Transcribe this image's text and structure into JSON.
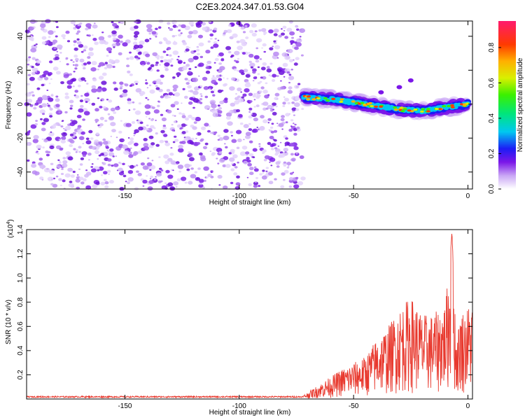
{
  "title": "C2E3.2024.347.01.53.G04",
  "chart_data": [
    {
      "type": "heatmap",
      "xlabel": "Height of straight line (km)",
      "ylabel": "Frequency (Hz)",
      "xlim": [
        -193,
        2
      ],
      "ylim": [
        -50,
        49
      ],
      "xticks": [
        -150,
        -100,
        -50,
        0
      ],
      "yticks": [
        -40,
        -20,
        0,
        20,
        40
      ],
      "noise_region_x": [
        -193,
        -72
      ],
      "signal_track": {
        "x": [
          -72,
          -60,
          -50,
          -40,
          -30,
          -20,
          -10,
          -5,
          0
        ],
        "freq": [
          4,
          3,
          1,
          -1,
          -3,
          -4,
          -2,
          -1,
          0
        ]
      },
      "colorbar": {
        "label": "Normalized spectral amplitude",
        "range": [
          0,
          0.95
        ],
        "ticks": [
          0.0,
          0.2,
          0.4,
          0.6,
          0.8
        ]
      }
    },
    {
      "type": "line",
      "xlabel": "Height of straight line (km)",
      "ylabel": "SNR (10 * v/v)",
      "yscale_label": "(x10",
      "yscale_exp": "4",
      "xlim": [
        -193,
        2
      ],
      "ylim": [
        0,
        1.4
      ],
      "xticks": [
        -150,
        -100,
        -50,
        0
      ],
      "yticks": [
        0.2,
        0.4,
        0.6,
        0.8,
        1.0,
        1.2,
        1.4
      ],
      "color": "#e8392e",
      "envelope": {
        "x": [
          -193,
          -150,
          -100,
          -72,
          -65,
          -55,
          -45,
          -40,
          -35,
          -30,
          -25,
          -20,
          -15,
          -10,
          -8,
          -7,
          -5,
          -3,
          -1,
          0,
          2
        ],
        "y": [
          0.02,
          0.02,
          0.02,
          0.03,
          0.12,
          0.25,
          0.35,
          0.5,
          0.6,
          0.75,
          0.85,
          0.7,
          0.7,
          0.8,
          1.1,
          1.38,
          0.5,
          0.75,
          0.72,
          0.78,
          0.8
        ]
      }
    }
  ]
}
